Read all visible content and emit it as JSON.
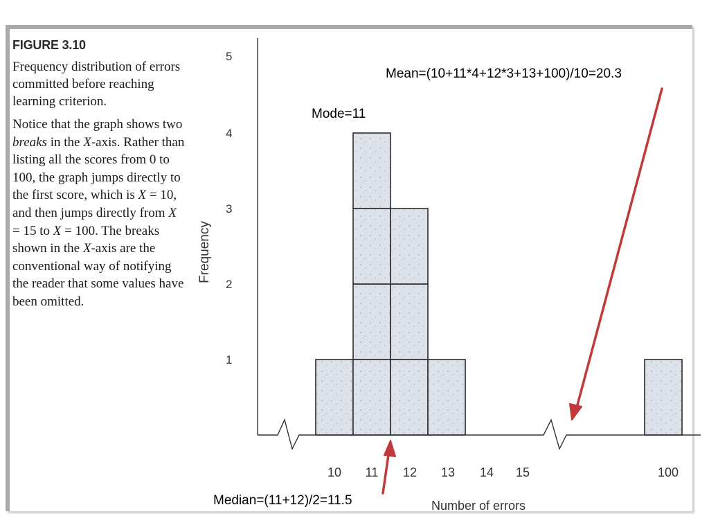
{
  "figure": {
    "title": "FIGURE 3.10",
    "caption": "Frequency distribution of errors committed before reaching learning criterion.",
    "note_parts": [
      "Notice that the graph shows two ",
      "breaks",
      " in the ",
      "X",
      "-axis. Rather than listing all the scores from 0 to 100, the graph jumps directly to the first score, which is ",
      "X",
      " = 10, and then jumps directly from ",
      "X",
      " = 15 to ",
      "X",
      " = 100. The breaks shown in the ",
      "X",
      "-axis are the conventional way of notifying the reader that some values have been omitted."
    ]
  },
  "annotations": {
    "mode": "Mode=11",
    "mean": "Mean=(10+11*4+12*3+13+100)/10=20.3",
    "median": "Median=(11+12)/2=11.5"
  },
  "chart_data": {
    "type": "bar",
    "categories": [
      "10",
      "11",
      "12",
      "13",
      "14",
      "15",
      "100"
    ],
    "values": [
      1,
      4,
      3,
      1,
      0,
      0,
      1
    ],
    "xlabel": "Number of errors",
    "ylabel": "Frequency",
    "ylim": [
      0,
      5
    ],
    "yticks": [
      "1",
      "2",
      "3",
      "4",
      "5"
    ],
    "axis_breaks": [
      "before 10",
      "between 15 and 100"
    ],
    "bar_fill": "#dde2ea",
    "arrow_color": "#c0393b",
    "grid": false
  }
}
